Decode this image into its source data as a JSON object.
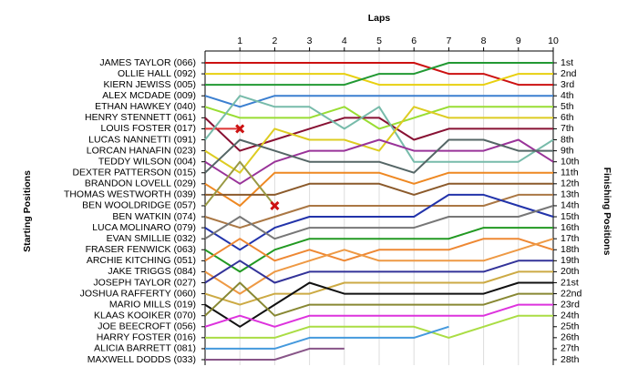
{
  "chart_data": {
    "type": "line",
    "title": "Laps",
    "y_title": "Starting Positions",
    "y2_title": "Finishing Positions",
    "x": [
      0,
      1,
      2,
      3,
      4,
      5,
      6,
      7,
      8,
      9,
      10
    ],
    "xlim": [
      0,
      10
    ],
    "xticks": [
      1,
      2,
      3,
      4,
      5,
      6,
      7,
      8,
      9,
      10
    ],
    "ylim": [
      1,
      28
    ],
    "grid": true,
    "finishing_labels": [
      "1st",
      "2nd",
      "3rd",
      "4th",
      "5th",
      "6th",
      "7th",
      "8th",
      "9th",
      "10th",
      "11th",
      "12th",
      "13th",
      "14th",
      "15th",
      "16th",
      "17th",
      "18th",
      "19th",
      "20th",
      "21st",
      "22nd",
      "23rd",
      "24th",
      "25th",
      "26th",
      "27th",
      "28th"
    ],
    "series": [
      {
        "name": "JAMES TAYLOR (066)",
        "color": "#cc1111",
        "values": [
          1,
          1,
          1,
          1,
          1,
          1,
          1,
          2,
          2,
          3,
          3
        ]
      },
      {
        "name": "OLLIE HALL (092)",
        "color": "#e8d010",
        "values": [
          2,
          2,
          2,
          2,
          2,
          3,
          3,
          3,
          3,
          2,
          2
        ]
      },
      {
        "name": "KIERN JEWISS (005)",
        "color": "#229933",
        "values": [
          3,
          3,
          3,
          3,
          3,
          2,
          2,
          1,
          1,
          1,
          1
        ]
      },
      {
        "name": "ALEX MCDADE (009)",
        "color": "#3b7fd0",
        "values": [
          4,
          5,
          4,
          4,
          4,
          4,
          4,
          4,
          4,
          4,
          4
        ]
      },
      {
        "name": "ETHAN HAWKEY (040)",
        "color": "#99dd33",
        "values": [
          5,
          6,
          6,
          6,
          5,
          7,
          6,
          5,
          5,
          5,
          5
        ]
      },
      {
        "name": "HENRY STENNETT (061)",
        "color": "#881133",
        "values": [
          6,
          9,
          8,
          7,
          6,
          6,
          8,
          7,
          7,
          7,
          7
        ]
      },
      {
        "name": "LOUIS FOSTER (017)",
        "color": "#dd3333",
        "retired": true,
        "values": [
          7,
          7,
          null,
          null,
          null,
          null,
          null,
          null,
          null,
          null,
          null
        ]
      },
      {
        "name": "LUCAS NANNETTI (091)",
        "color": "#77bbaa",
        "values": [
          8,
          4,
          5,
          5,
          7,
          5,
          10,
          10,
          10,
          10,
          8
        ]
      },
      {
        "name": "LORCAN HANAFIN (023)",
        "color": "#ddcc22",
        "values": [
          9,
          11,
          7,
          8,
          8,
          9,
          5,
          6,
          6,
          6,
          6
        ]
      },
      {
        "name": "TEDDY WILSON (004)",
        "color": "#993399",
        "values": [
          10,
          12,
          10,
          9,
          9,
          8,
          9,
          9,
          9,
          8,
          10
        ]
      },
      {
        "name": "DEXTER PATTERSON (015)",
        "color": "#556666",
        "values": [
          11,
          8,
          9,
          10,
          10,
          10,
          11,
          8,
          8,
          9,
          9
        ]
      },
      {
        "name": "BRANDON LOVELL (029)",
        "color": "#ee8822",
        "values": [
          12,
          14,
          11,
          11,
          11,
          11,
          12,
          11,
          11,
          11,
          11
        ]
      },
      {
        "name": "THOMAS WESTWORTH (039)",
        "color": "#8b5a2b",
        "values": [
          13,
          13,
          13,
          12,
          12,
          12,
          13,
          12,
          12,
          12,
          12
        ]
      },
      {
        "name": "BEN WOOLDRIDGE (057)",
        "color": "#999944",
        "retired": true,
        "values": [
          14,
          10,
          14,
          null,
          null,
          null,
          null,
          null,
          null,
          null,
          null
        ]
      },
      {
        "name": "BEN WATKIN (074)",
        "color": "#aa7744",
        "values": [
          15,
          16,
          15,
          14,
          14,
          14,
          14,
          14,
          14,
          13,
          13
        ]
      },
      {
        "name": "LUCA MOLINARO (079)",
        "color": "#2233aa",
        "values": [
          16,
          18,
          16,
          15,
          15,
          15,
          15,
          13,
          13,
          14,
          15
        ]
      },
      {
        "name": "EVAN SMILLIE (032)",
        "color": "#777777",
        "values": [
          17,
          15,
          17,
          16,
          16,
          16,
          16,
          15,
          15,
          15,
          14
        ]
      },
      {
        "name": "FRASER FENWICK (063)",
        "color": "#229922",
        "values": [
          18,
          20,
          18,
          17,
          17,
          17,
          17,
          17,
          16,
          16,
          16
        ]
      },
      {
        "name": "ARCHIE KITCHING (051)",
        "color": "#ee8833",
        "values": [
          19,
          17,
          19,
          18,
          19,
          18,
          18,
          18,
          17,
          17,
          18
        ]
      },
      {
        "name": "JAKE TRIGGS (084)",
        "color": "#ee9944",
        "values": [
          20,
          22,
          20,
          19,
          18,
          19,
          19,
          19,
          19,
          18,
          17
        ]
      },
      {
        "name": "JOSEPH TAYLOR (027)",
        "color": "#333399",
        "values": [
          21,
          19,
          21,
          20,
          20,
          20,
          20,
          20,
          20,
          19,
          19
        ]
      },
      {
        "name": "JOSHUA RAFFERTY (060)",
        "color": "#ccaa44",
        "values": [
          22,
          23,
          22,
          22,
          21,
          21,
          21,
          21,
          21,
          20,
          20
        ]
      },
      {
        "name": "MARIO MILLS (019)",
        "color": "#111111",
        "values": [
          23,
          25,
          23,
          21,
          22,
          22,
          22,
          22,
          22,
          21,
          21
        ]
      },
      {
        "name": "KLAAS KOOIKER (070)",
        "color": "#888833",
        "values": [
          24,
          21,
          24,
          23,
          23,
          23,
          23,
          23,
          23,
          22,
          22
        ]
      },
      {
        "name": "JOE BEECROFT (056)",
        "color": "#dd33dd",
        "values": [
          25,
          24,
          25,
          24,
          24,
          24,
          24,
          24,
          24,
          23,
          23
        ]
      },
      {
        "name": "HARRY FOSTER (016)",
        "color": "#aadd44",
        "values": [
          26,
          26,
          26,
          25,
          25,
          25,
          25,
          26,
          25,
          24,
          24
        ]
      },
      {
        "name": "ALICIA BARRETT (081)",
        "color": "#4499dd",
        "values": [
          27,
          27,
          27,
          26,
          26,
          26,
          26,
          25,
          null,
          null,
          null
        ]
      },
      {
        "name": "MAXWELL DODDS (033)",
        "color": "#885588",
        "values": [
          28,
          28,
          28,
          27,
          27,
          null,
          null,
          null,
          null,
          null,
          null
        ]
      }
    ]
  }
}
